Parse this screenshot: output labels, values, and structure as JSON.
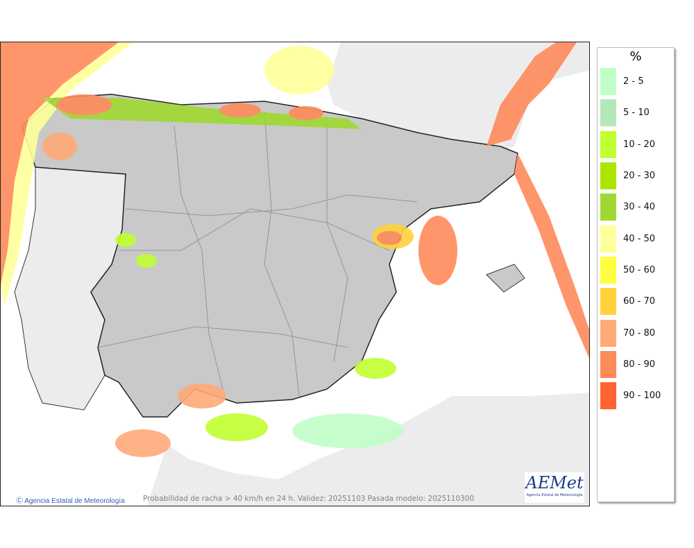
{
  "map": {
    "caption": "Probabilidad de racha > 40 km/h en 24 h. Validez: 20251103 Pasada modelo: 2025110300",
    "credit": "Agencia Estatal de Meteorología",
    "credit_icon": "copyright-icon",
    "logo": {
      "text": "AEMet",
      "subtitle": "Agencia Estatal de Meteorología"
    }
  },
  "legend": {
    "title": "%",
    "items": [
      {
        "label": "2 - 5",
        "color": "#c0ffc8"
      },
      {
        "label": "5 - 10",
        "color": "#b4e8b8"
      },
      {
        "label": "10 - 20",
        "color": "#c0ff30"
      },
      {
        "label": "20 - 30",
        "color": "#aae600"
      },
      {
        "label": "30 - 40",
        "color": "#a0d832"
      },
      {
        "label": "40 - 50",
        "color": "#ffff9a"
      },
      {
        "label": "50 - 60",
        "color": "#ffff40"
      },
      {
        "label": "60 - 70",
        "color": "#ffd23c"
      },
      {
        "label": "70 - 80",
        "color": "#ffaa78"
      },
      {
        "label": "80 - 90",
        "color": "#ff8a5a"
      },
      {
        "label": "90 - 100",
        "color": "#ff6432"
      }
    ]
  }
}
